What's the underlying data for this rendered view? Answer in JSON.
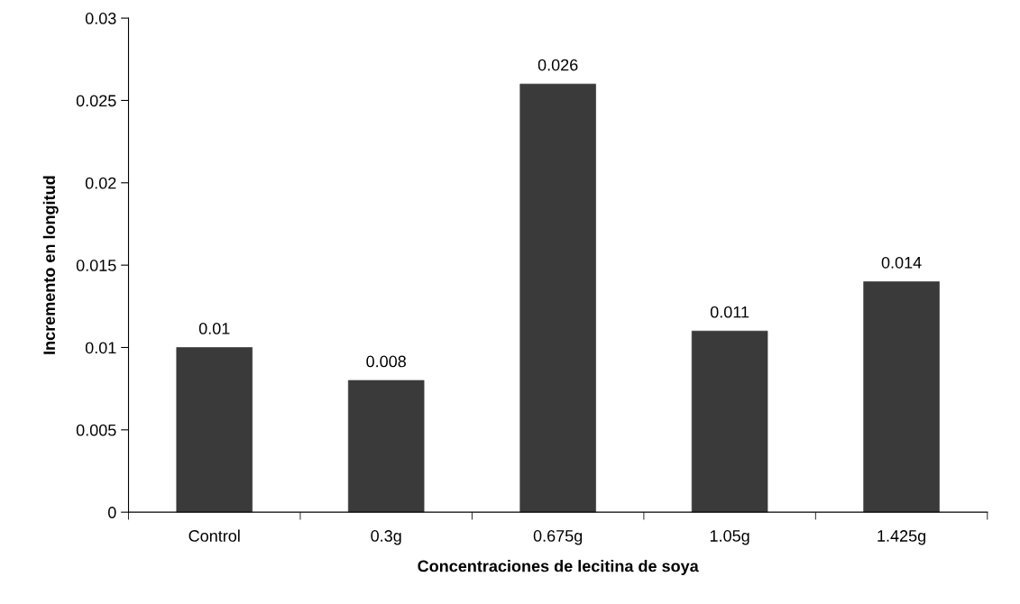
{
  "chart_data": {
    "type": "bar",
    "xlabel": "Concentraciones de lecitina de soya",
    "ylabel": "Incremento en longitud",
    "categories": [
      "Control",
      "0.3g",
      "0.675g",
      "1.05g",
      "1.425g"
    ],
    "values": [
      0.01,
      0.008,
      0.026,
      0.011,
      0.014
    ],
    "color": "#3a3a3a",
    "ylim": [
      0,
      0.03
    ],
    "yticks": [
      {
        "value": 0,
        "label": "0"
      },
      0.005,
      0.01,
      0.015,
      0.02,
      0.025,
      0.03
    ],
    "data_labels": true,
    "grid": false
  }
}
